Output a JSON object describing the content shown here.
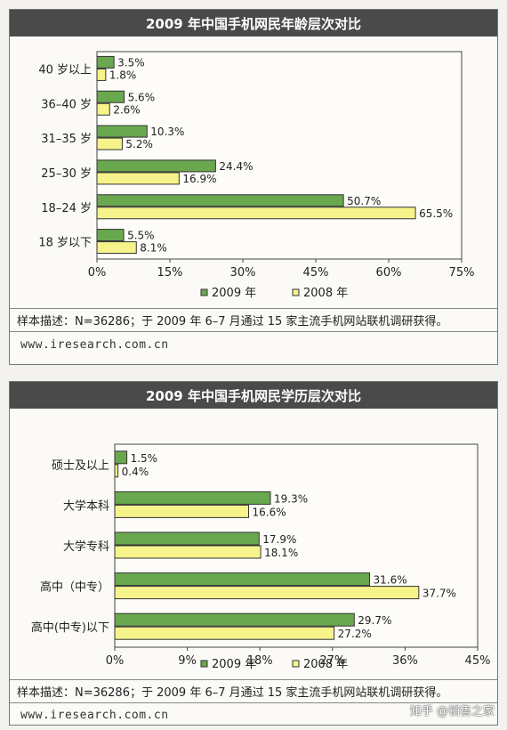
{
  "chart_data": [
    {
      "type": "bar",
      "orientation": "horizontal",
      "title": "2009 年中国手机网民年龄层次对比",
      "categories": [
        "40 岁以上",
        "36–40 岁",
        "31–35 岁",
        "25–30 岁",
        "18–24 岁",
        "18 岁以下"
      ],
      "series": [
        {
          "name": "2009 年",
          "values": [
            3.5,
            5.6,
            10.3,
            24.4,
            50.7,
            5.5
          ],
          "labels": [
            "3.5%",
            "5.6%",
            "10.3%",
            "24.4%",
            "50.7%",
            "5.5%"
          ],
          "color": "#6aa84f"
        },
        {
          "name": "2008 年",
          "values": [
            1.8,
            2.6,
            5.2,
            16.9,
            65.5,
            8.1
          ],
          "labels": [
            "1.8%",
            "2.6%",
            "5.2%",
            "16.9%",
            "65.5%",
            "8.1%"
          ],
          "color": "#f5f38a"
        }
      ],
      "xlim": [
        0,
        75
      ],
      "xticks": [
        "0%",
        "15%",
        "30%",
        "45%",
        "60%",
        "75%"
      ],
      "legend": "bottom",
      "note": "样本描述：N=36286；于 2009 年 6–7 月通过 15 家主流手机网站联机调研获得。",
      "source": "www.iresearch.com.cn"
    },
    {
      "type": "bar",
      "orientation": "horizontal",
      "title": "2009 年中国手机网民学历层次对比",
      "categories": [
        "硕士及以上",
        "大学本科",
        "大学专科",
        "高中（中专）",
        "高中(中专)以下"
      ],
      "series": [
        {
          "name": "2009 年",
          "values": [
            1.5,
            19.3,
            17.9,
            31.6,
            29.7
          ],
          "labels": [
            "1.5%",
            "19.3%",
            "17.9%",
            "31.6%",
            "29.7%"
          ],
          "color": "#6aa84f"
        },
        {
          "name": "2008 年",
          "values": [
            0.4,
            16.6,
            18.1,
            37.7,
            27.2
          ],
          "labels": [
            "0.4%",
            "16.6%",
            "18.1%",
            "37.7%",
            "27.2%"
          ],
          "color": "#f5f38a"
        }
      ],
      "xlim": [
        0,
        45
      ],
      "xticks": [
        "0%",
        "9%",
        "18%",
        "27%",
        "36%",
        "45%"
      ],
      "legend": "bottom",
      "note": "样本描述：N=36286；于 2009 年 6–7 月通过 15 家主流手机网站联机调研获得。",
      "source": "www.iresearch.com.cn"
    }
  ],
  "watermark": "知乎 @销售之家"
}
